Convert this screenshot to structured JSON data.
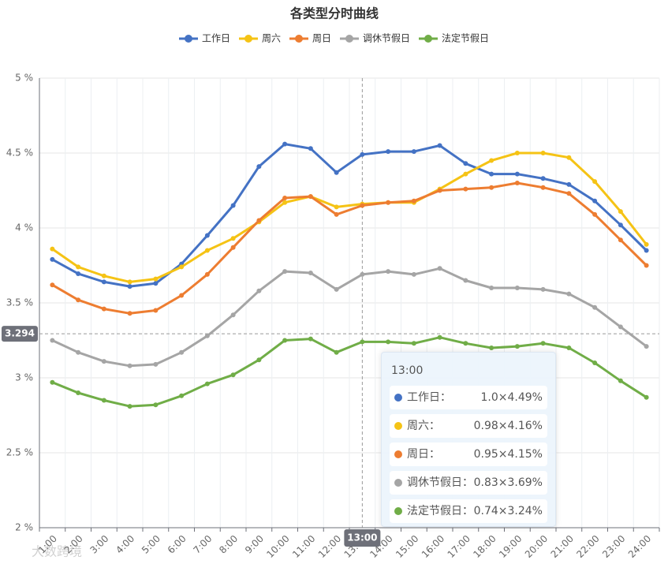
{
  "chart_data": {
    "type": "line",
    "title": "各类型分时曲线",
    "categories": [
      "1:00",
      "2:00",
      "3:00",
      "4:00",
      "5:00",
      "6:00",
      "7:00",
      "8:00",
      "9:00",
      "10:00",
      "11:00",
      "12:00",
      "13:00",
      "14:00",
      "15:00",
      "16:00",
      "17:00",
      "18:00",
      "19:00",
      "20:00",
      "21:00",
      "22:00",
      "23:00",
      "24:00"
    ],
    "series": [
      {
        "name": "工作日",
        "color": "#4472c4",
        "values": [
          3.79,
          3.695,
          3.64,
          3.61,
          3.63,
          3.76,
          3.95,
          4.15,
          4.41,
          4.56,
          4.53,
          4.37,
          4.49,
          4.51,
          4.51,
          4.55,
          4.43,
          4.36,
          4.36,
          4.33,
          4.29,
          4.18,
          4.02,
          3.85
        ]
      },
      {
        "name": "周六",
        "color": "#f5c315",
        "values": [
          3.86,
          3.74,
          3.68,
          3.64,
          3.66,
          3.74,
          3.85,
          3.93,
          4.04,
          4.17,
          4.21,
          4.14,
          4.16,
          4.17,
          4.17,
          4.26,
          4.36,
          4.45,
          4.5,
          4.5,
          4.47,
          4.31,
          4.11,
          3.89
        ]
      },
      {
        "name": "周日",
        "color": "#ed7d31",
        "values": [
          3.62,
          3.52,
          3.46,
          3.43,
          3.45,
          3.55,
          3.69,
          3.87,
          4.05,
          4.2,
          4.21,
          4.09,
          4.15,
          4.17,
          4.18,
          4.25,
          4.26,
          4.27,
          4.3,
          4.27,
          4.23,
          4.09,
          3.92,
          3.75
        ]
      },
      {
        "name": "调休节假日",
        "color": "#a5a5a5",
        "values": [
          3.25,
          3.17,
          3.11,
          3.08,
          3.09,
          3.17,
          3.28,
          3.42,
          3.58,
          3.71,
          3.7,
          3.59,
          3.69,
          3.71,
          3.69,
          3.73,
          3.65,
          3.6,
          3.6,
          3.59,
          3.56,
          3.47,
          3.34,
          3.21
        ]
      },
      {
        "name": "法定节假日",
        "color": "#70ad47",
        "values": [
          2.97,
          2.9,
          2.85,
          2.81,
          2.82,
          2.88,
          2.96,
          3.02,
          3.12,
          3.25,
          3.26,
          3.17,
          3.24,
          3.24,
          3.23,
          3.27,
          3.23,
          3.2,
          3.21,
          3.23,
          3.2,
          3.1,
          2.98,
          2.87
        ]
      }
    ],
    "ylim": [
      2,
      5
    ],
    "yticks": [
      {
        "value": 2,
        "label": "2 %"
      },
      {
        "value": 2.5,
        "label": "2.5 %"
      },
      {
        "value": 3,
        "label": "3 %"
      },
      {
        "value": 3.5,
        "label": "3.5 %"
      },
      {
        "value": 4,
        "label": "4 %"
      },
      {
        "value": 4.5,
        "label": "4.5 %"
      },
      {
        "value": 5,
        "label": "5 %"
      }
    ],
    "grid": true,
    "legend": "top",
    "axis_pointer": {
      "y": 3.294,
      "x": "13:00"
    },
    "tooltip": {
      "title": "13:00",
      "items": [
        {
          "name": "工作日：",
          "text": "1.0×4.49%"
        },
        {
          "name": "周六：",
          "text": "0.98×4.16%"
        },
        {
          "name": "周日：",
          "text": "0.95×4.15%"
        },
        {
          "name": "调休节假日：",
          "text": "0.83×3.69%"
        },
        {
          "name": "法定节假日：",
          "text": "0.74×3.24%"
        }
      ]
    },
    "watermark": "大数跨境"
  }
}
